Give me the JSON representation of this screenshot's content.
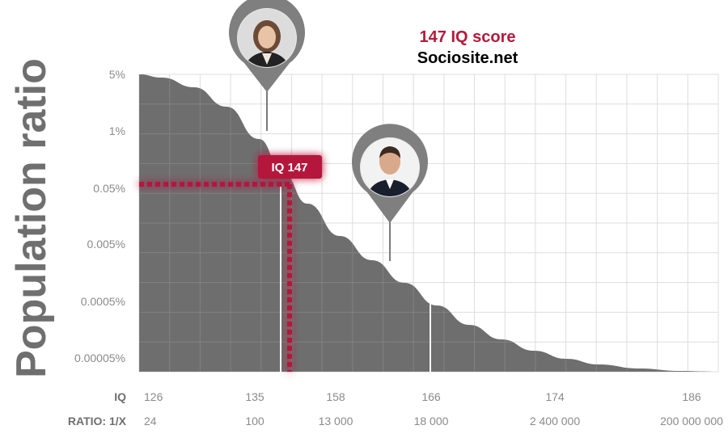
{
  "chart_data": {
    "type": "area",
    "title": "147 IQ score",
    "subtitle": "Sociosite.net",
    "ylabel": "Population ratio",
    "y_scale": "log",
    "y_ticks": [
      "5%",
      "1%",
      "0.05%",
      "0.005%",
      "0.0005%",
      "0.00005%"
    ],
    "x_row_label": "IQ",
    "x_ticks": [
      "126",
      "135",
      "158",
      "166",
      "174",
      "186"
    ],
    "ratio_row_label": "RATIO: 1/X",
    "ratio_ticks": [
      "24",
      "100",
      "13 000",
      "18 000",
      "2 400 000",
      "200 000 000"
    ],
    "grid": true,
    "highlight": {
      "label": "IQ 147",
      "iq": 147,
      "color": "#b5193a"
    },
    "colors": {
      "fill": "#6e6e6e",
      "grid": "#dddddd",
      "marker": "#7a7a7a"
    },
    "markers": [
      {
        "name": "woman-portrait",
        "icon": "woman-portrait-icon"
      },
      {
        "name": "man-portrait",
        "icon": "man-portrait-icon"
      }
    ]
  }
}
